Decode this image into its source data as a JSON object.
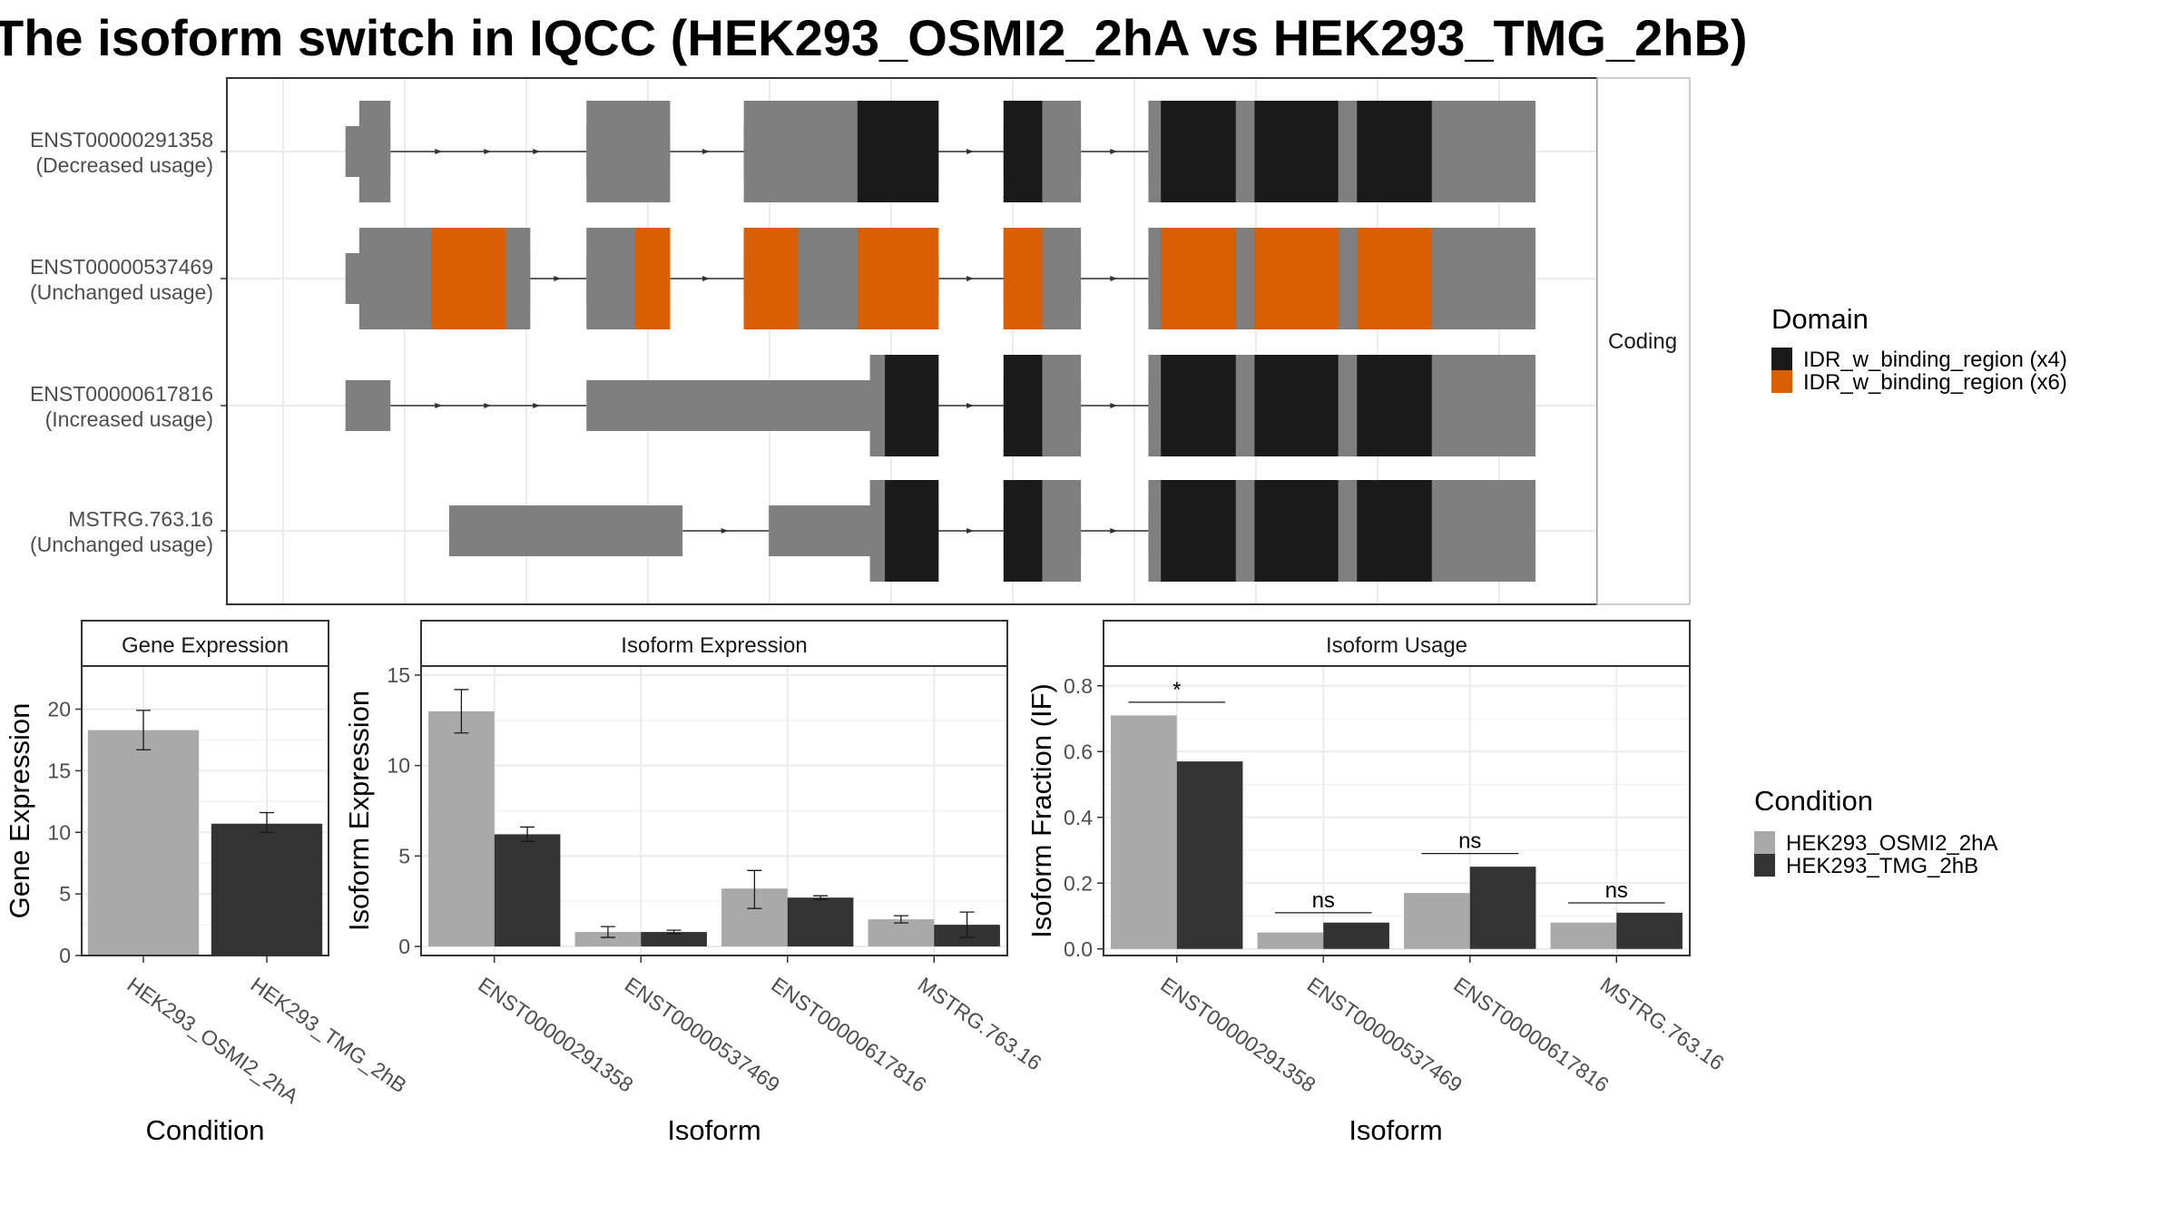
{
  "title": "The isoform switch in IQCC (HEK293_OSMI2_2hA vs HEK293_TMG_2hB)",
  "colors": {
    "utr": "#7f7f7f",
    "domain_x4": "#1a1a1a",
    "domain_x6": "#d95f02",
    "cond_a": "#a9a9a9",
    "cond_b": "#333333",
    "grid": "#ebebeb"
  },
  "structure": {
    "strip_label": "Coding",
    "x_range": [
      0,
      1000
    ],
    "intron_arrows": true,
    "isoforms": [
      {
        "id": "ENST00000291358",
        "usage": "(Decreased usage)",
        "start": 47,
        "end": 1000,
        "exons": [
          [
            47,
            83
          ],
          [
            240,
            307
          ],
          [
            366,
            522
          ],
          [
            574,
            636
          ],
          [
            690,
            1000
          ]
        ],
        "cds": [
          [
            58,
            83
          ],
          [
            240,
            307
          ],
          [
            366,
            522
          ],
          [
            574,
            636
          ],
          [
            690,
            1000
          ]
        ],
        "domains": [
          {
            "type": "x4",
            "ranges": [
              [
                457,
                522
              ],
              [
                574,
                605
              ],
              [
                700,
                760
              ],
              [
                775,
                842
              ],
              [
                857,
                917
              ]
            ]
          }
        ]
      },
      {
        "id": "ENST00000537469",
        "usage": "(Unchanged usage)",
        "start": 47,
        "end": 1000,
        "exons": [
          [
            47,
            195
          ],
          [
            240,
            307
          ],
          [
            366,
            522
          ],
          [
            574,
            636
          ],
          [
            690,
            1000
          ]
        ],
        "cds": [
          [
            58,
            195
          ],
          [
            240,
            307
          ],
          [
            366,
            522
          ],
          [
            574,
            636
          ],
          [
            690,
            1000
          ]
        ],
        "domains": [
          {
            "type": "x6",
            "ranges": [
              [
                116,
                175
              ],
              [
                279,
                307
              ],
              [
                366,
                409
              ],
              [
                457,
                522
              ],
              [
                574,
                605
              ],
              [
                700,
                760
              ],
              [
                775,
                842
              ],
              [
                857,
                917
              ]
            ]
          }
        ]
      },
      {
        "id": "ENST00000617816",
        "usage": "(Increased usage)",
        "start": 47,
        "end": 1000,
        "exons": [
          [
            47,
            83
          ],
          [
            240,
            522
          ],
          [
            574,
            636
          ],
          [
            690,
            1000
          ]
        ],
        "cds": [
          [
            467,
            522
          ],
          [
            574,
            636
          ],
          [
            690,
            1000
          ]
        ],
        "domains": [
          {
            "type": "x4",
            "ranges": [
              [
                479,
                522
              ],
              [
                574,
                605
              ],
              [
                700,
                760
              ],
              [
                775,
                842
              ],
              [
                857,
                917
              ]
            ]
          }
        ]
      },
      {
        "id": "MSTRG.763.16",
        "usage": "(Unchanged usage)",
        "start": 130,
        "end": 1000,
        "exons": [
          [
            130,
            317
          ],
          [
            386,
            522
          ],
          [
            574,
            636
          ],
          [
            690,
            1000
          ]
        ],
        "cds": [
          [
            467,
            522
          ],
          [
            574,
            636
          ],
          [
            690,
            1000
          ]
        ],
        "domains": [
          {
            "type": "x4",
            "ranges": [
              [
                479,
                522
              ],
              [
                574,
                605
              ],
              [
                700,
                760
              ],
              [
                775,
                842
              ],
              [
                857,
                917
              ]
            ]
          }
        ]
      }
    ]
  },
  "legend_domain": {
    "title": "Domain",
    "items": [
      {
        "label": "IDR_w_binding_region (x4)",
        "color": "#1a1a1a"
      },
      {
        "label": "IDR_w_binding_region (x6)",
        "color": "#d95f02"
      }
    ]
  },
  "legend_condition": {
    "title": "Condition",
    "items": [
      {
        "label": "HEK293_OSMI2_2hA",
        "color": "#a9a9a9"
      },
      {
        "label": "HEK293_TMG_2hB",
        "color": "#333333"
      }
    ]
  },
  "chart_data": [
    {
      "type": "bar",
      "title": "Gene Expression",
      "xlabel": "Condition",
      "ylabel": "Gene Expression",
      "ylim": [
        0,
        23.5
      ],
      "yticks": [
        0,
        5,
        10,
        15,
        20
      ],
      "categories": [
        "HEK293_OSMI2_2hA",
        "HEK293_TMG_2hB"
      ],
      "values": [
        18.3,
        10.7
      ],
      "errors": [
        [
          16.7,
          19.9
        ],
        [
          10.0,
          11.6
        ]
      ],
      "colors": [
        "#a9a9a9",
        "#333333"
      ]
    },
    {
      "type": "bar",
      "title": "Isoform Expression",
      "xlabel": "Isoform",
      "ylabel": "Isoform Expression",
      "ylim": [
        -0.5,
        15.5
      ],
      "yticks": [
        0,
        5,
        10,
        15
      ],
      "categories": [
        "ENST00000291358",
        "ENST00000537469",
        "ENST00000617816",
        "MSTRG.763.16"
      ],
      "series": [
        {
          "name": "HEK293_OSMI2_2hA",
          "values": [
            13.0,
            0.8,
            3.2,
            1.5
          ],
          "errors": [
            [
              11.8,
              14.2
            ],
            [
              0.5,
              1.1
            ],
            [
              2.1,
              4.2
            ],
            [
              1.3,
              1.7
            ]
          ]
        },
        {
          "name": "HEK293_TMG_2hB",
          "values": [
            6.2,
            0.8,
            2.7,
            1.2
          ],
          "errors": [
            [
              5.8,
              6.6
            ],
            [
              0.7,
              0.9
            ],
            [
              2.6,
              2.8
            ],
            [
              0.5,
              1.9
            ]
          ]
        }
      ]
    },
    {
      "type": "bar",
      "title": "Isoform Usage",
      "xlabel": "Isoform",
      "ylabel": "Isoform Fraction (IF)",
      "ylim": [
        -0.02,
        0.86
      ],
      "yticks": [
        0.0,
        0.2,
        0.4,
        0.6,
        0.8
      ],
      "ytick_labels": [
        "0.0",
        "0.2",
        "0.4",
        "0.6",
        "0.8"
      ],
      "categories": [
        "ENST00000291358",
        "ENST00000537469",
        "ENST00000617816",
        "MSTRG.763.16"
      ],
      "series": [
        {
          "name": "HEK293_OSMI2_2hA",
          "values": [
            0.71,
            0.05,
            0.17,
            0.08
          ]
        },
        {
          "name": "HEK293_TMG_2hB",
          "values": [
            0.57,
            0.08,
            0.25,
            0.11
          ]
        }
      ],
      "significance": [
        {
          "label": "*",
          "y": 0.75
        },
        {
          "label": "ns",
          "y": 0.11
        },
        {
          "label": "ns",
          "y": 0.29
        },
        {
          "label": "ns",
          "y": 0.14
        }
      ]
    }
  ]
}
